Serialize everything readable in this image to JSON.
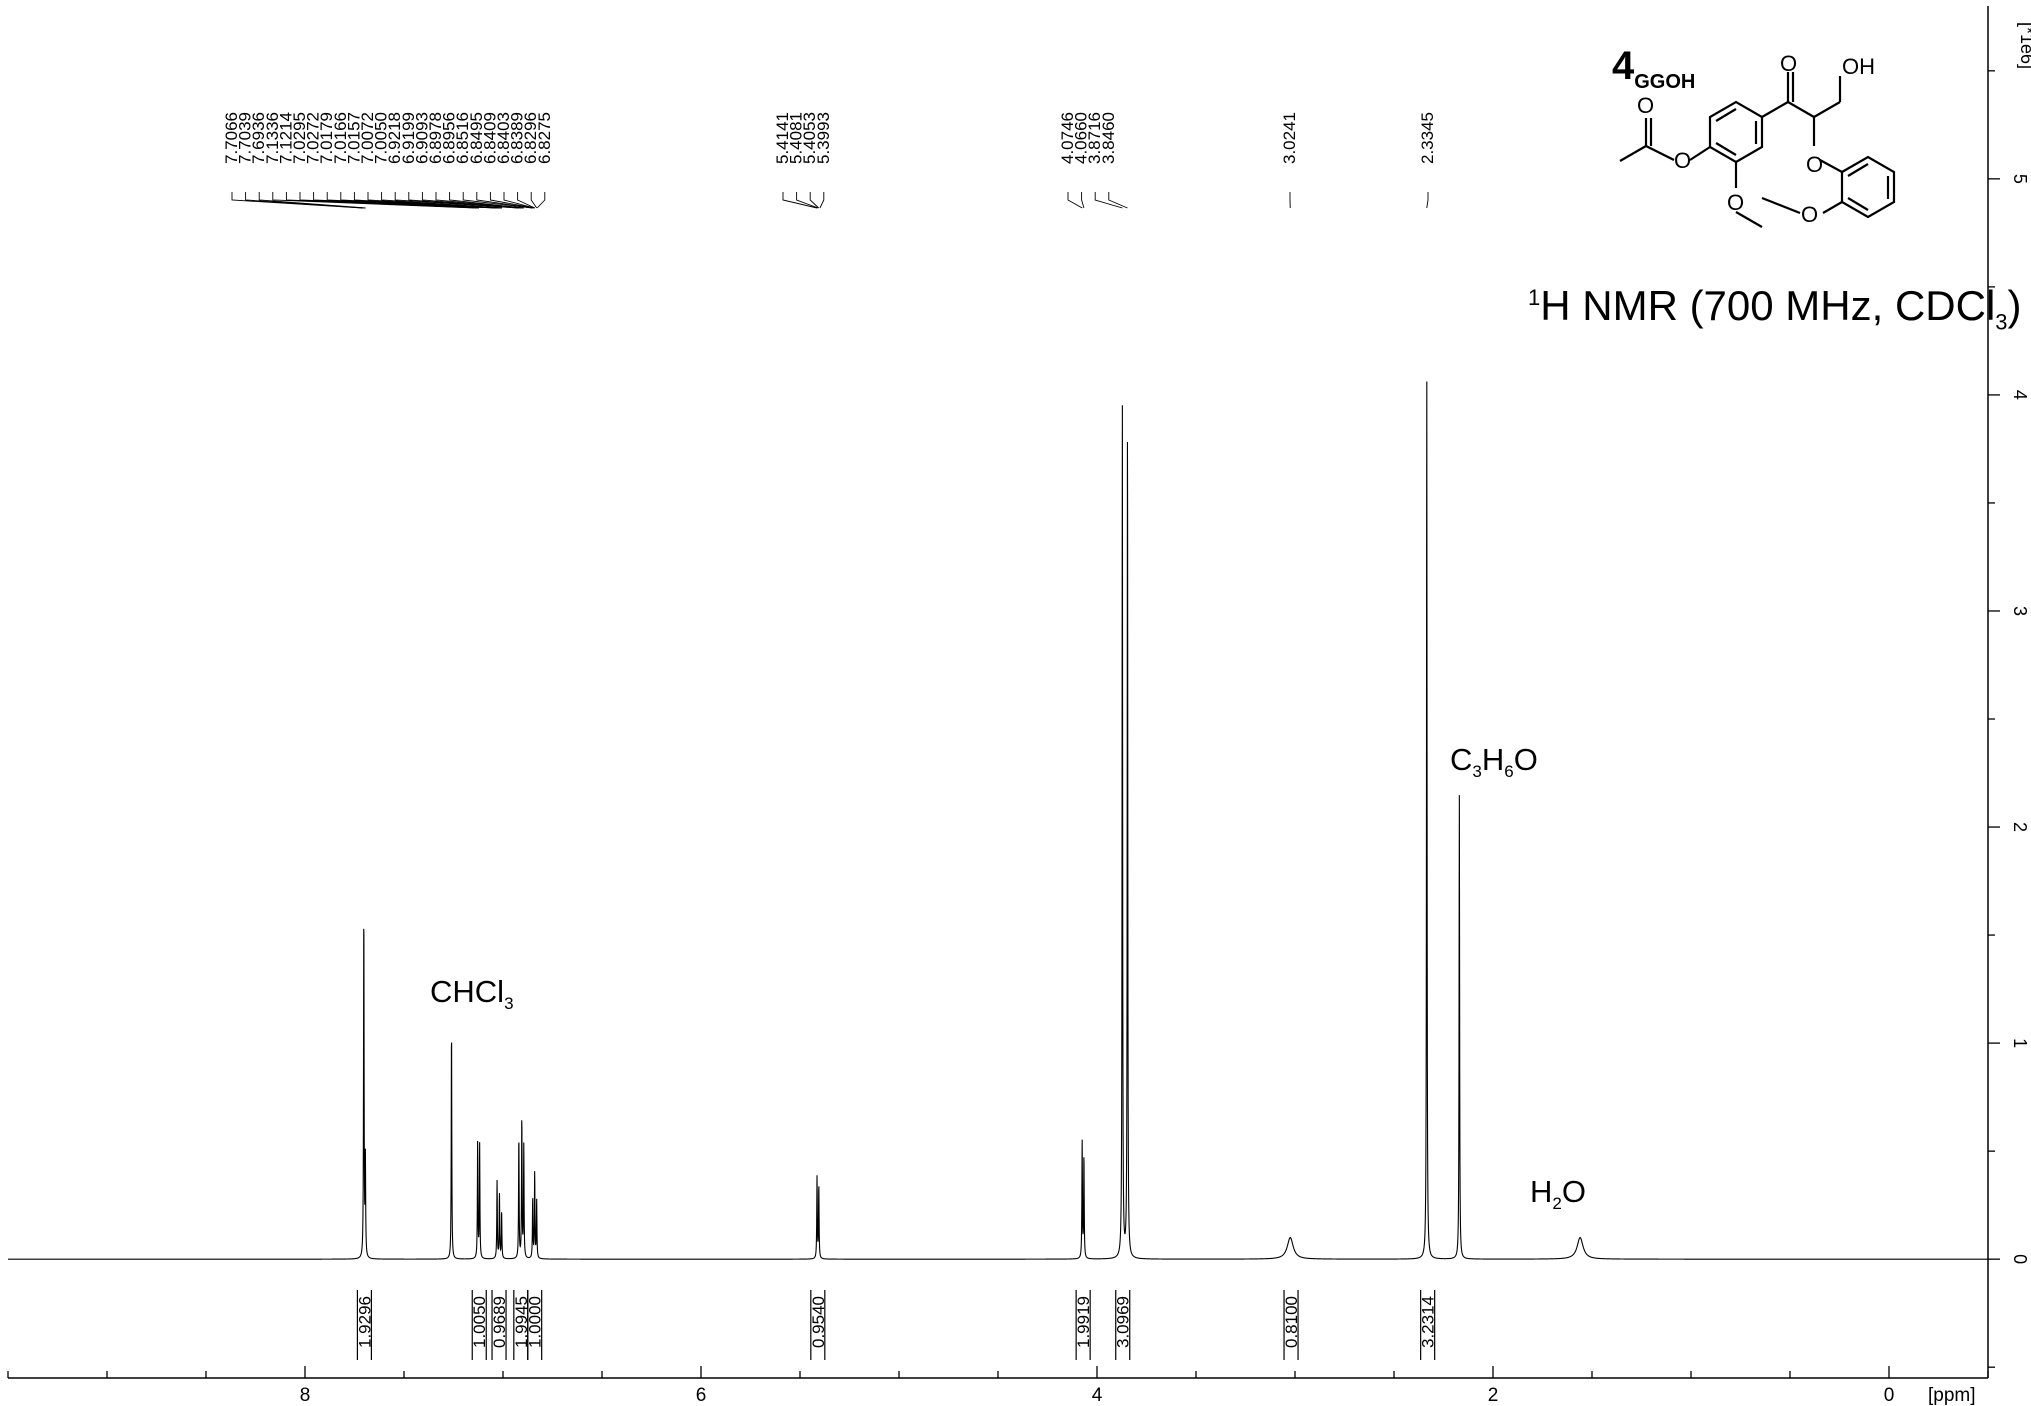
{
  "chart_data": {
    "type": "line",
    "xlabel": "[ppm]",
    "ylabel": "[*1e6]",
    "xlim": [
      9.5,
      -0.5
    ],
    "ylim": [
      -0.55,
      5.8
    ],
    "x_ticks": [
      "8",
      "6",
      "4",
      "2",
      "0"
    ],
    "y_ticks": [
      "0",
      "1",
      "2",
      "3",
      "4",
      "5"
    ],
    "peaks": [
      {
        "ppm": 7.703,
        "height": 1.63
      },
      {
        "ppm": 7.695,
        "height": 0.45
      },
      {
        "ppm": 7.26,
        "height": 1.08
      },
      {
        "ppm": 7.128,
        "height": 0.55
      },
      {
        "ppm": 7.118,
        "height": 0.53
      },
      {
        "ppm": 7.03,
        "height": 0.36
      },
      {
        "ppm": 7.018,
        "height": 0.3
      },
      {
        "ppm": 7.007,
        "height": 0.22
      },
      {
        "ppm": 6.92,
        "height": 0.57
      },
      {
        "ppm": 6.905,
        "height": 0.66
      },
      {
        "ppm": 6.895,
        "height": 0.52
      },
      {
        "ppm": 6.85,
        "height": 0.28
      },
      {
        "ppm": 6.84,
        "height": 0.4
      },
      {
        "ppm": 6.83,
        "height": 0.27
      },
      {
        "ppm": 5.414,
        "height": 0.38
      },
      {
        "ppm": 5.405,
        "height": 0.34
      },
      {
        "ppm": 4.075,
        "height": 0.54
      },
      {
        "ppm": 4.066,
        "height": 0.48
      },
      {
        "ppm": 3.872,
        "height": 3.98
      },
      {
        "ppm": 3.846,
        "height": 3.93
      },
      {
        "ppm": 3.024,
        "height": 0.1
      },
      {
        "ppm": 2.3345,
        "height": 4.14
      },
      {
        "ppm": 2.17,
        "height": 2.15
      },
      {
        "ppm": 1.56,
        "height": 0.1
      }
    ],
    "annotations": [
      {
        "label": "CHCl3",
        "ppm": 7.26
      },
      {
        "label": "C3H6O",
        "ppm": 2.17
      },
      {
        "label": "H2O",
        "ppm": 1.56
      }
    ],
    "peak_label_groups": [
      {
        "labels": [
          "7.7066",
          "7.7039",
          "7.6936",
          "7.1336",
          "7.1214",
          "7.0295",
          "7.0272",
          "7.0179",
          "7.0166",
          "7.0157",
          "7.0072",
          "7.0050",
          "6.9218",
          "6.9199",
          "6.9093",
          "6.8978",
          "6.8956",
          "6.8516",
          "6.8495",
          "6.8409",
          "6.8403",
          "6.8389",
          "6.8296",
          "6.8275"
        ]
      },
      {
        "labels": [
          "5.4141",
          "5.4081",
          "5.4053",
          "5.3993"
        ]
      },
      {
        "labels": [
          "4.0746",
          "4.0660",
          "3.8716",
          "3.8460"
        ]
      },
      {
        "labels": [
          "3.0241"
        ]
      },
      {
        "labels": [
          "2.3345"
        ]
      }
    ],
    "integrals": [
      {
        "ppm": 7.7,
        "value": "1.9296"
      },
      {
        "ppm": 7.12,
        "value": "1.0050"
      },
      {
        "ppm": 7.02,
        "value": "0.9689"
      },
      {
        "ppm": 6.91,
        "value": "1.9945"
      },
      {
        "ppm": 6.84,
        "value": "1.0000"
      },
      {
        "ppm": 5.41,
        "value": "0.9540"
      },
      {
        "ppm": 4.07,
        "value": "1.9919"
      },
      {
        "ppm": 3.87,
        "value": "3.0969"
      },
      {
        "ppm": 3.02,
        "value": "0.8100"
      },
      {
        "ppm": 2.33,
        "value": "3.2314"
      }
    ]
  },
  "title": {
    "prefix": "1",
    "main": "H NMR (700 MHz, CDCl",
    "sub": "3",
    "suffix": ")"
  },
  "compound": {
    "number": "4",
    "subscript": "GGOH"
  },
  "molecule_labels": {
    "O": "O",
    "OH": "OH"
  },
  "annotations_text": {
    "chcl3": {
      "main": "CHCl",
      "sub": "3"
    },
    "acetone": {
      "c": "C",
      "c_sub": "3",
      "h": "H",
      "h_sub": "6",
      "o": "O"
    },
    "water": {
      "h": "H",
      "h_sub": "2",
      "o": "O"
    }
  }
}
